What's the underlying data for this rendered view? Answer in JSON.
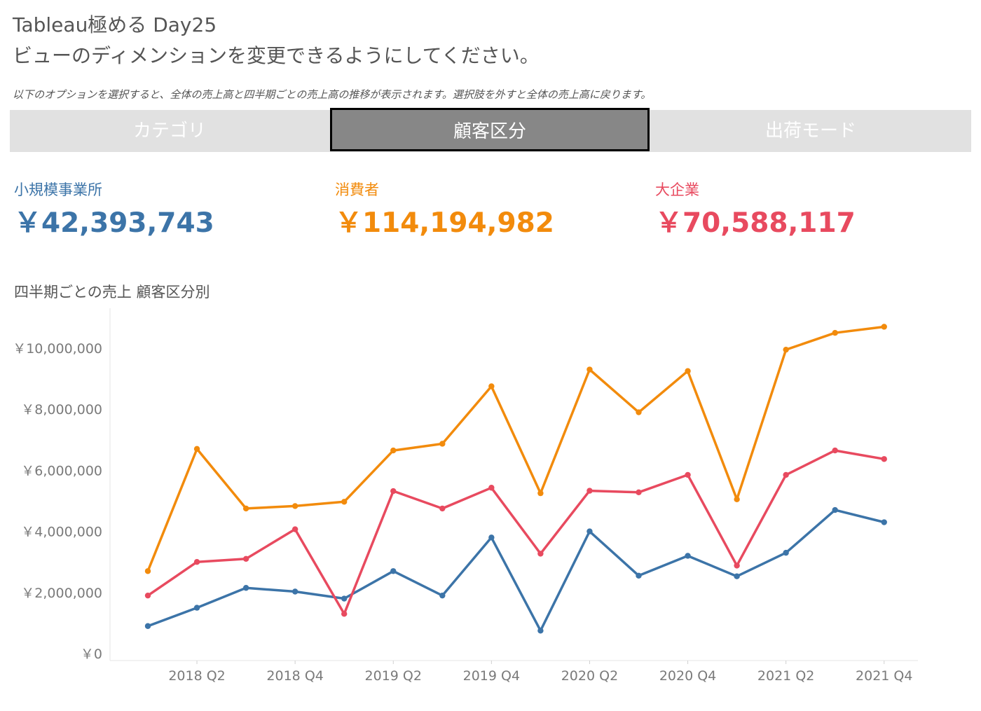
{
  "header": {
    "title_line1": "Tableau極める Day25",
    "title_line2": "ビューのディメンションを変更できるようにしてください。",
    "note": "以下のオプションを選択すると、全体の売上高と四半期ごとの売上高の推移が表示されます。選択肢を外すと全体の売上高に戻ります。"
  },
  "tabs": [
    {
      "label": "カテゴリ",
      "selected": false
    },
    {
      "label": "顧客区分",
      "selected": true
    },
    {
      "label": "出荷モード",
      "selected": false
    }
  ],
  "kpis": [
    {
      "label": "小規模事業所",
      "value": "￥42,393,743",
      "color": "#3c74a8"
    },
    {
      "label": "消費者",
      "value": "￥114,194,982",
      "color": "#f28b0c"
    },
    {
      "label": "大企業",
      "value": "￥70,588,117",
      "color": "#e84a5f"
    }
  ],
  "chart_data": {
    "type": "line",
    "title": "四半期ごとの売上 顧客区分別",
    "xlabel": "",
    "ylabel": "",
    "categories": [
      "2018 Q1",
      "2018 Q2",
      "2018 Q3",
      "2018 Q4",
      "2019 Q1",
      "2019 Q2",
      "2019 Q3",
      "2019 Q4",
      "2020 Q1",
      "2020 Q2",
      "2020 Q3",
      "2020 Q4",
      "2021 Q1",
      "2021 Q2",
      "2021 Q3",
      "2021 Q4"
    ],
    "x_tick_labels": [
      "2018 Q2",
      "2018 Q4",
      "2019 Q2",
      "2019 Q4",
      "2020 Q2",
      "2020 Q4",
      "2021 Q2",
      "2021 Q4"
    ],
    "y_tick_values": [
      0,
      2000000,
      4000000,
      6000000,
      8000000,
      10000000
    ],
    "y_tick_labels": [
      "￥0",
      "￥2,000,000",
      "￥4,000,000",
      "￥6,000,000",
      "￥8,000,000",
      "￥10,000,000"
    ],
    "ylim": [
      0,
      11300000
    ],
    "grid": false,
    "series": [
      {
        "name": "小規模事業所",
        "color": "#3c74a8",
        "values": [
          900000,
          1500000,
          2150000,
          2030000,
          1800000,
          2700000,
          1900000,
          3800000,
          750000,
          4000000,
          2550000,
          3200000,
          2530000,
          3300000,
          4700000,
          4300000
        ]
      },
      {
        "name": "消費者",
        "color": "#f28b0c",
        "values": [
          2700000,
          6700000,
          4750000,
          4830000,
          4970000,
          6650000,
          6870000,
          8750000,
          5250000,
          9300000,
          7900000,
          9250000,
          5050000,
          9950000,
          10500000,
          10700000
        ]
      },
      {
        "name": "大企業",
        "color": "#e84a5f",
        "values": [
          1900000,
          3000000,
          3100000,
          4070000,
          1300000,
          5320000,
          4750000,
          5430000,
          3270000,
          5330000,
          5280000,
          5850000,
          2880000,
          5850000,
          6650000,
          6370000
        ]
      }
    ]
  }
}
